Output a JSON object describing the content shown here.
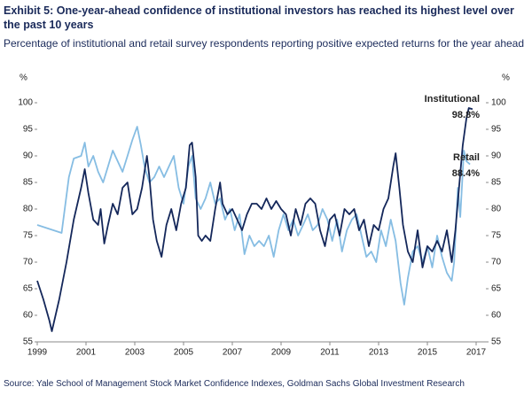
{
  "chart_data": {
    "type": "line",
    "title": "Exhibit 5: One-year-ahead confidence of institutional investors has reached its highest level over the past 10 years",
    "subtitle": "Percentage of institutional and retail survey respondents reporting positive expected returns for the year ahead",
    "source": "Source: Yale School of Management Stock Market Confidence Indexes, Goldman Sachs Global Investment Research",
    "ylabel": "%",
    "y2label": "%",
    "xlim": [
      1999,
      2017.4
    ],
    "xticks": [
      1999,
      2001,
      2003,
      2005,
      2007,
      2009,
      2011,
      2013,
      2015,
      2017
    ],
    "ylim": [
      55,
      100
    ],
    "yticks": [
      55,
      60,
      65,
      70,
      75,
      80,
      85,
      90,
      95,
      100
    ],
    "y2lim": [
      55,
      100
    ],
    "y2ticks": [
      55,
      60,
      65,
      70,
      75,
      80,
      85,
      90,
      95,
      100
    ],
    "series": [
      {
        "name": "Institutional",
        "color": "#14275a",
        "end_label": "98.8%",
        "x": [
          1999.0,
          1999.25,
          1999.5,
          1999.6,
          1999.9,
          2000.2,
          2000.5,
          2000.8,
          2000.95,
          2001.1,
          2001.3,
          2001.5,
          2001.6,
          2001.75,
          2001.9,
          2002.1,
          2002.3,
          2002.5,
          2002.7,
          2002.9,
          2003.1,
          2003.3,
          2003.5,
          2003.6,
          2003.75,
          2003.9,
          2004.1,
          2004.3,
          2004.5,
          2004.7,
          2004.9,
          2005.1,
          2005.25,
          2005.35,
          2005.5,
          2005.6,
          2005.75,
          2005.9,
          2006.1,
          2006.3,
          2006.5,
          2006.6,
          2006.8,
          2007.0,
          2007.2,
          2007.4,
          2007.6,
          2007.8,
          2008.0,
          2008.2,
          2008.4,
          2008.6,
          2008.8,
          2009.0,
          2009.2,
          2009.4,
          2009.6,
          2009.8,
          2010.0,
          2010.2,
          2010.4,
          2010.6,
          2010.8,
          2011.0,
          2011.2,
          2011.4,
          2011.6,
          2011.8,
          2012.0,
          2012.2,
          2012.4,
          2012.6,
          2012.8,
          2013.0,
          2013.2,
          2013.4,
          2013.6,
          2013.7,
          2013.85,
          2014.0,
          2014.2,
          2014.4,
          2014.6,
          2014.8,
          2015.0,
          2015.2,
          2015.4,
          2015.6,
          2015.8,
          2016.0,
          2016.15,
          2016.3,
          2016.45,
          2016.6,
          2016.7,
          2016.85
        ],
        "values": [
          66.5,
          63,
          59,
          57,
          63,
          70,
          78,
          84,
          87.5,
          83,
          78,
          77,
          80,
          73.5,
          77,
          81,
          79,
          84,
          85,
          79,
          80,
          84,
          90,
          86,
          78,
          74,
          71,
          77,
          80,
          76,
          81,
          84,
          92,
          92.5,
          86,
          75,
          74,
          75,
          74,
          80,
          85,
          81,
          79,
          80,
          78,
          76,
          79,
          81,
          81,
          80,
          82,
          80,
          81.5,
          80,
          79,
          75,
          80,
          77,
          81,
          82,
          81,
          76,
          73,
          78,
          79,
          75,
          80,
          79,
          80,
          76,
          78,
          73,
          77,
          76,
          80,
          82,
          88,
          90.5,
          84,
          77,
          72,
          70,
          76,
          69,
          73,
          72,
          74,
          72,
          76,
          70,
          76,
          84,
          92,
          97,
          99,
          98.8
        ]
      },
      {
        "name": "Retail",
        "color": "#86bde3",
        "end_label": "88.4%",
        "x": [
          1999.0,
          2000.0,
          2000.3,
          2000.5,
          2000.8,
          2000.95,
          2001.1,
          2001.3,
          2001.5,
          2001.7,
          2001.9,
          2002.1,
          2002.3,
          2002.5,
          2002.7,
          2002.9,
          2003.1,
          2003.25,
          2003.4,
          2003.6,
          2003.8,
          2004.0,
          2004.2,
          2004.4,
          2004.6,
          2004.8,
          2005.0,
          2005.2,
          2005.35,
          2005.5,
          2005.7,
          2005.9,
          2006.1,
          2006.3,
          2006.5,
          2006.7,
          2006.9,
          2007.1,
          2007.3,
          2007.5,
          2007.7,
          2007.9,
          2008.1,
          2008.3,
          2008.5,
          2008.7,
          2008.9,
          2009.1,
          2009.3,
          2009.5,
          2009.7,
          2009.9,
          2010.1,
          2010.3,
          2010.5,
          2010.7,
          2010.9,
          2011.1,
          2011.3,
          2011.5,
          2011.7,
          2011.9,
          2012.1,
          2012.3,
          2012.5,
          2012.7,
          2012.9,
          2013.1,
          2013.3,
          2013.5,
          2013.7,
          2013.9,
          2014.05,
          2014.2,
          2014.4,
          2014.6,
          2014.8,
          2015.0,
          2015.2,
          2015.4,
          2015.6,
          2015.8,
          2016.0,
          2016.1,
          2016.25,
          2016.35,
          2016.5,
          2016.6,
          2016.75
        ],
        "values": [
          77,
          75.5,
          86,
          89.5,
          90,
          92.5,
          88,
          90,
          87,
          85,
          88,
          91,
          89,
          87,
          90,
          93,
          95.5,
          92,
          88,
          85,
          86,
          88,
          86,
          88,
          90,
          84,
          81,
          88,
          90,
          82,
          80,
          82,
          85,
          81,
          82,
          78,
          80,
          76,
          79,
          71.5,
          75,
          73,
          74,
          73,
          75,
          71,
          76,
          79,
          76,
          78,
          75,
          77,
          79,
          76,
          77,
          80,
          78,
          74,
          78,
          72,
          76,
          78,
          79,
          75,
          71,
          72,
          70,
          76,
          73,
          78,
          74,
          66,
          62,
          67,
          72,
          73,
          70,
          73,
          69,
          75,
          71,
          68,
          66.5,
          70,
          84,
          78.5,
          91,
          89,
          88.4
        ]
      }
    ]
  }
}
